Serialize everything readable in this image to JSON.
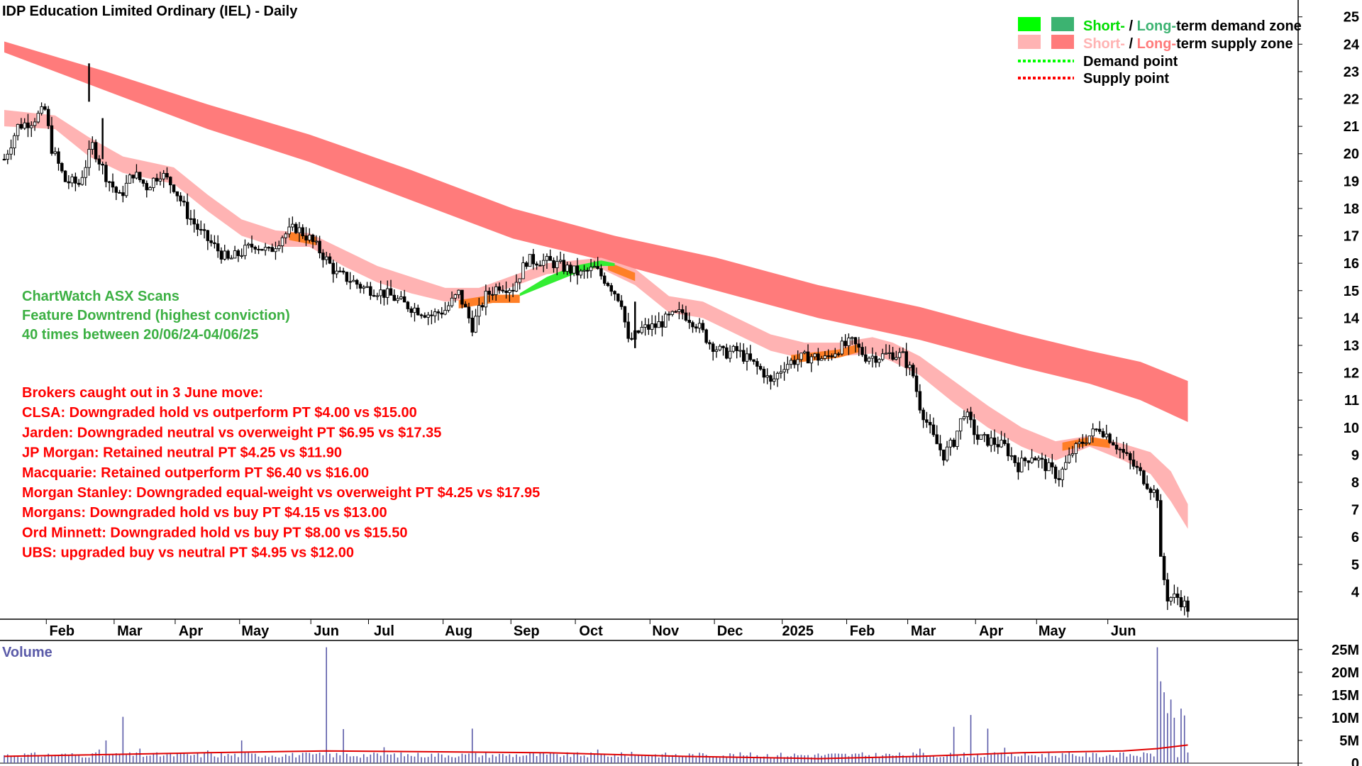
{
  "colors": {
    "long_supply": "#ff7b7b",
    "short_supply": "#ffb3b3",
    "short_demand": "#00ff00",
    "long_demand": "#3cb371",
    "orange_band": "#ff7f27",
    "green_band": "#33ee33",
    "candle": "#000000",
    "volume_bar": "#5a5aa8",
    "volume_avg": "#e00000",
    "green_text": "#3cb043",
    "red_text": "#ff0000"
  },
  "legend": [
    {
      "short": "Short-",
      "sep": " / ",
      "long": "Long-",
      "rest": "term demand zone",
      "swatch_short": "#00ff00",
      "swatch_long": "#3cb371",
      "short_color": "#00dd00",
      "long_color": "#3cb371"
    },
    {
      "short": "Short-",
      "sep": " / ",
      "long": "Long-",
      "rest": "term supply zone",
      "swatch_short": "#ffb3b3",
      "swatch_long": "#ff7b7b",
      "short_color": "#ffb3b3",
      "long_color": "#ff7b7b"
    },
    {
      "label": "Demand point",
      "line": "#00ff00"
    },
    {
      "label": "Supply point",
      "line": "#ff0000"
    }
  ],
  "scan_note": {
    "lines": [
      "ChartWatch ASX Scans",
      "Feature Downtrend (highest conviction)",
      "40 times between 20/06/24-04/06/25"
    ]
  },
  "broker_note": {
    "lines": [
      "Brokers caught out in 3 June move:",
      "CLSA: Downgraded hold vs outperform PT $4.00 vs $15.00",
      "Jarden: Downgraded neutral vs overweight PT $6.95 vs $17.35",
      "JP Morgan: Retained neutral PT $4.25 vs $11.90",
      "Macquarie: Retained outperform PT $6.40 vs $16.00",
      "Morgan Stanley: Downgraded equal-weight vs overweight PT $4.25 vs $17.95",
      "Morgans: Downgraded hold vs buy PT $4.15 vs $13.00",
      "Ord Minnett: Downgraded hold vs buy PT $8.00 vs $15.50",
      "UBS: upgraded buy vs neutral PT $4.95 vs $12.00"
    ]
  },
  "chart_data": {
    "type": "candlestick",
    "title": "IDP Education Limited Ordinary (IEL) - Daily",
    "volume_label": "Volume",
    "y_ticks": [
      4,
      5,
      6,
      7,
      8,
      9,
      10,
      11,
      12,
      13,
      14,
      15,
      16,
      17,
      18,
      19,
      20,
      21,
      22,
      23,
      24,
      25
    ],
    "y_range": [
      3,
      25.2
    ],
    "x_range": [
      0,
      365
    ],
    "x_ticks": [
      {
        "label": "Feb",
        "x": 17
      },
      {
        "label": "Mar",
        "x": 37
      },
      {
        "label": "Apr",
        "x": 55
      },
      {
        "label": "May",
        "x": 74
      },
      {
        "label": "Jun",
        "x": 95
      },
      {
        "label": "Jul",
        "x": 112
      },
      {
        "label": "Aug",
        "x": 134
      },
      {
        "label": "Sep",
        "x": 154
      },
      {
        "label": "Oct",
        "x": 173
      },
      {
        "label": "Nov",
        "x": 195
      },
      {
        "label": "Dec",
        "x": 214
      },
      {
        "label": "2025",
        "x": 234
      },
      {
        "label": "Feb",
        "x": 253
      },
      {
        "label": "Mar",
        "x": 271
      },
      {
        "label": "Apr",
        "x": 291
      },
      {
        "label": "May",
        "x": 309
      },
      {
        "label": "Jun",
        "x": 330
      }
    ],
    "volume_ticks": [
      {
        "label": "0",
        "v": 0
      },
      {
        "label": "5M",
        "v": 5
      },
      {
        "label": "10M",
        "v": 10
      },
      {
        "label": "15M",
        "v": 15
      },
      {
        "label": "20M",
        "v": 20
      },
      {
        "label": "25M",
        "v": 25
      }
    ],
    "volume_range": [
      0,
      27
    ],
    "price_path": [
      [
        0,
        19.8
      ],
      [
        4,
        21.0
      ],
      [
        8,
        21.2
      ],
      [
        12,
        21.6
      ],
      [
        14,
        20.2
      ],
      [
        18,
        19.0
      ],
      [
        22,
        18.9
      ],
      [
        26,
        20.3
      ],
      [
        30,
        19.2
      ],
      [
        34,
        18.4
      ],
      [
        38,
        19.3
      ],
      [
        42,
        18.8
      ],
      [
        46,
        19.3
      ],
      [
        50,
        18.8
      ],
      [
        54,
        17.8
      ],
      [
        58,
        17.1
      ],
      [
        62,
        16.6
      ],
      [
        66,
        16.1
      ],
      [
        70,
        16.4
      ],
      [
        74,
        16.7
      ],
      [
        78,
        16.4
      ],
      [
        82,
        17.0
      ],
      [
        86,
        17.3
      ],
      [
        90,
        16.9
      ],
      [
        94,
        16.3
      ],
      [
        98,
        15.6
      ],
      [
        102,
        15.4
      ],
      [
        106,
        15.1
      ],
      [
        110,
        15.0
      ],
      [
        114,
        14.8
      ],
      [
        118,
        14.5
      ],
      [
        122,
        14.3
      ],
      [
        126,
        14.1
      ],
      [
        130,
        14.3
      ],
      [
        134,
        14.9
      ],
      [
        138,
        13.7
      ],
      [
        142,
        14.8
      ],
      [
        146,
        15.2
      ],
      [
        150,
        15.1
      ],
      [
        154,
        16.1
      ],
      [
        158,
        16.1
      ],
      [
        162,
        16.0
      ],
      [
        166,
        15.8
      ],
      [
        170,
        15.6
      ],
      [
        174,
        15.8
      ],
      [
        178,
        15.3
      ],
      [
        182,
        14.6
      ],
      [
        184,
        13.1
      ],
      [
        188,
        13.6
      ],
      [
        192,
        13.7
      ],
      [
        196,
        14.0
      ],
      [
        200,
        14.2
      ],
      [
        204,
        13.8
      ],
      [
        208,
        13.1
      ],
      [
        212,
        12.7
      ],
      [
        216,
        12.8
      ],
      [
        220,
        12.4
      ],
      [
        224,
        12.0
      ],
      [
        226,
        11.6
      ],
      [
        230,
        12.3
      ],
      [
        234,
        12.5
      ],
      [
        238,
        12.6
      ],
      [
        242,
        12.5
      ],
      [
        246,
        12.9
      ],
      [
        250,
        13.1
      ],
      [
        254,
        12.6
      ],
      [
        258,
        12.6
      ],
      [
        262,
        12.7
      ],
      [
        265,
        12.6
      ],
      [
        268,
        11.9
      ],
      [
        270,
        10.8
      ],
      [
        274,
        9.6
      ],
      [
        277,
        9.0
      ],
      [
        280,
        9.5
      ],
      [
        283,
        10.6
      ],
      [
        287,
        9.6
      ],
      [
        291,
        9.5
      ],
      [
        295,
        9.3
      ],
      [
        299,
        8.6
      ],
      [
        303,
        9.0
      ],
      [
        307,
        8.6
      ],
      [
        311,
        8.2
      ],
      [
        315,
        9.1
      ],
      [
        319,
        9.6
      ],
      [
        323,
        10.0
      ],
      [
        327,
        9.5
      ],
      [
        331,
        8.9
      ],
      [
        335,
        8.3
      ],
      [
        338,
        7.8
      ],
      [
        340,
        7.5
      ],
      [
        341,
        5.1
      ],
      [
        343,
        3.8
      ],
      [
        346,
        3.8
      ],
      [
        349,
        3.4
      ]
    ],
    "long_supply_zone": [
      [
        0,
        23.7,
        24.1
      ],
      [
        30,
        22.3,
        23.0
      ],
      [
        60,
        20.9,
        21.8
      ],
      [
        90,
        19.7,
        20.7
      ],
      [
        120,
        18.3,
        19.4
      ],
      [
        150,
        16.9,
        18.0
      ],
      [
        180,
        16.0,
        17.0
      ],
      [
        210,
        15.0,
        16.2
      ],
      [
        240,
        14.0,
        15.2
      ],
      [
        270,
        13.2,
        14.4
      ],
      [
        300,
        12.2,
        13.4
      ],
      [
        320,
        11.6,
        12.8
      ],
      [
        335,
        11.0,
        12.4
      ],
      [
        349,
        10.2,
        11.7
      ]
    ],
    "short_supply_zone": [
      [
        0,
        21.0,
        21.6
      ],
      [
        15,
        20.9,
        21.4
      ],
      [
        25,
        19.9,
        20.6
      ],
      [
        35,
        19.3,
        19.9
      ],
      [
        50,
        18.9,
        19.5
      ],
      [
        60,
        17.9,
        18.5
      ],
      [
        70,
        17.0,
        17.6
      ],
      [
        80,
        16.6,
        17.2
      ],
      [
        90,
        16.6,
        17.1
      ],
      [
        100,
        15.9,
        16.5
      ],
      [
        110,
        15.3,
        15.9
      ],
      [
        120,
        14.9,
        15.5
      ],
      [
        130,
        14.6,
        15.1
      ],
      [
        140,
        14.7,
        15.1
      ],
      [
        160,
        15.6,
        16.0
      ],
      [
        176,
        15.8,
        16.2
      ],
      [
        186,
        15.2,
        15.8
      ],
      [
        196,
        14.2,
        14.8
      ],
      [
        206,
        14.0,
        14.6
      ],
      [
        216,
        13.4,
        14.0
      ],
      [
        226,
        12.8,
        13.4
      ],
      [
        236,
        12.5,
        13.1
      ],
      [
        246,
        12.6,
        13.1
      ],
      [
        256,
        12.7,
        13.3
      ],
      [
        262,
        12.4,
        13.1
      ],
      [
        270,
        11.9,
        12.6
      ],
      [
        280,
        10.9,
        11.7
      ],
      [
        290,
        10.0,
        10.8
      ],
      [
        300,
        9.3,
        10.0
      ],
      [
        310,
        8.8,
        9.5
      ],
      [
        320,
        9.3,
        9.7
      ],
      [
        330,
        8.8,
        9.4
      ],
      [
        338,
        8.3,
        9.1
      ],
      [
        344,
        7.3,
        8.4
      ],
      [
        349,
        6.3,
        7.2
      ]
    ],
    "orange_segments": [
      [
        [
          84,
          17.0
        ],
        [
          92,
          16.8
        ]
      ],
      [
        [
          134,
          14.5
        ],
        [
          144,
          14.7
        ],
        [
          152,
          14.7
        ]
      ],
      [
        [
          178,
          15.9
        ],
        [
          186,
          15.5
        ]
      ],
      [
        [
          232,
          12.5
        ],
        [
          246,
          12.7
        ],
        [
          252,
          12.9
        ]
      ],
      [
        [
          312,
          9.3
        ],
        [
          320,
          9.5
        ],
        [
          326,
          9.4
        ]
      ]
    ],
    "green_segment": {
      "lower": [
        [
          152,
          14.8
        ],
        [
          160,
          15.2
        ],
        [
          168,
          15.6
        ],
        [
          176,
          15.9
        ],
        [
          180,
          15.9
        ]
      ],
      "upper": [
        [
          152,
          14.9
        ],
        [
          160,
          15.5
        ],
        [
          168,
          15.9
        ],
        [
          176,
          16.1
        ],
        [
          180,
          16.0
        ]
      ]
    },
    "volume": {
      "baseline": 1.2,
      "avg": [
        [
          0,
          1.5
        ],
        [
          60,
          2.3
        ],
        [
          95,
          2.7
        ],
        [
          160,
          2.3
        ],
        [
          200,
          1.5
        ],
        [
          240,
          1.0
        ],
        [
          270,
          1.5
        ],
        [
          300,
          2.3
        ],
        [
          330,
          2.7
        ],
        [
          340,
          3.2
        ],
        [
          349,
          4.0
        ]
      ],
      "spikes": [
        [
          28,
          3.0
        ],
        [
          30,
          5.0
        ],
        [
          35,
          10.2
        ],
        [
          40,
          3.2
        ],
        [
          60,
          2.8
        ],
        [
          70,
          5.0
        ],
        [
          95,
          25.5
        ],
        [
          100,
          7.5
        ],
        [
          112,
          3.5
        ],
        [
          138,
          7.6
        ],
        [
          175,
          3.0
        ],
        [
          185,
          2.5
        ],
        [
          270,
          3.2
        ],
        [
          280,
          8.0
        ],
        [
          285,
          10.6
        ],
        [
          290,
          7.6
        ],
        [
          295,
          3.4
        ],
        [
          340,
          25.5
        ],
        [
          341,
          18.0
        ],
        [
          342,
          15.6
        ],
        [
          343,
          11.0
        ],
        [
          344,
          14.0
        ],
        [
          345,
          10.0
        ],
        [
          347,
          12.0
        ],
        [
          348,
          10.5
        ]
      ]
    }
  }
}
